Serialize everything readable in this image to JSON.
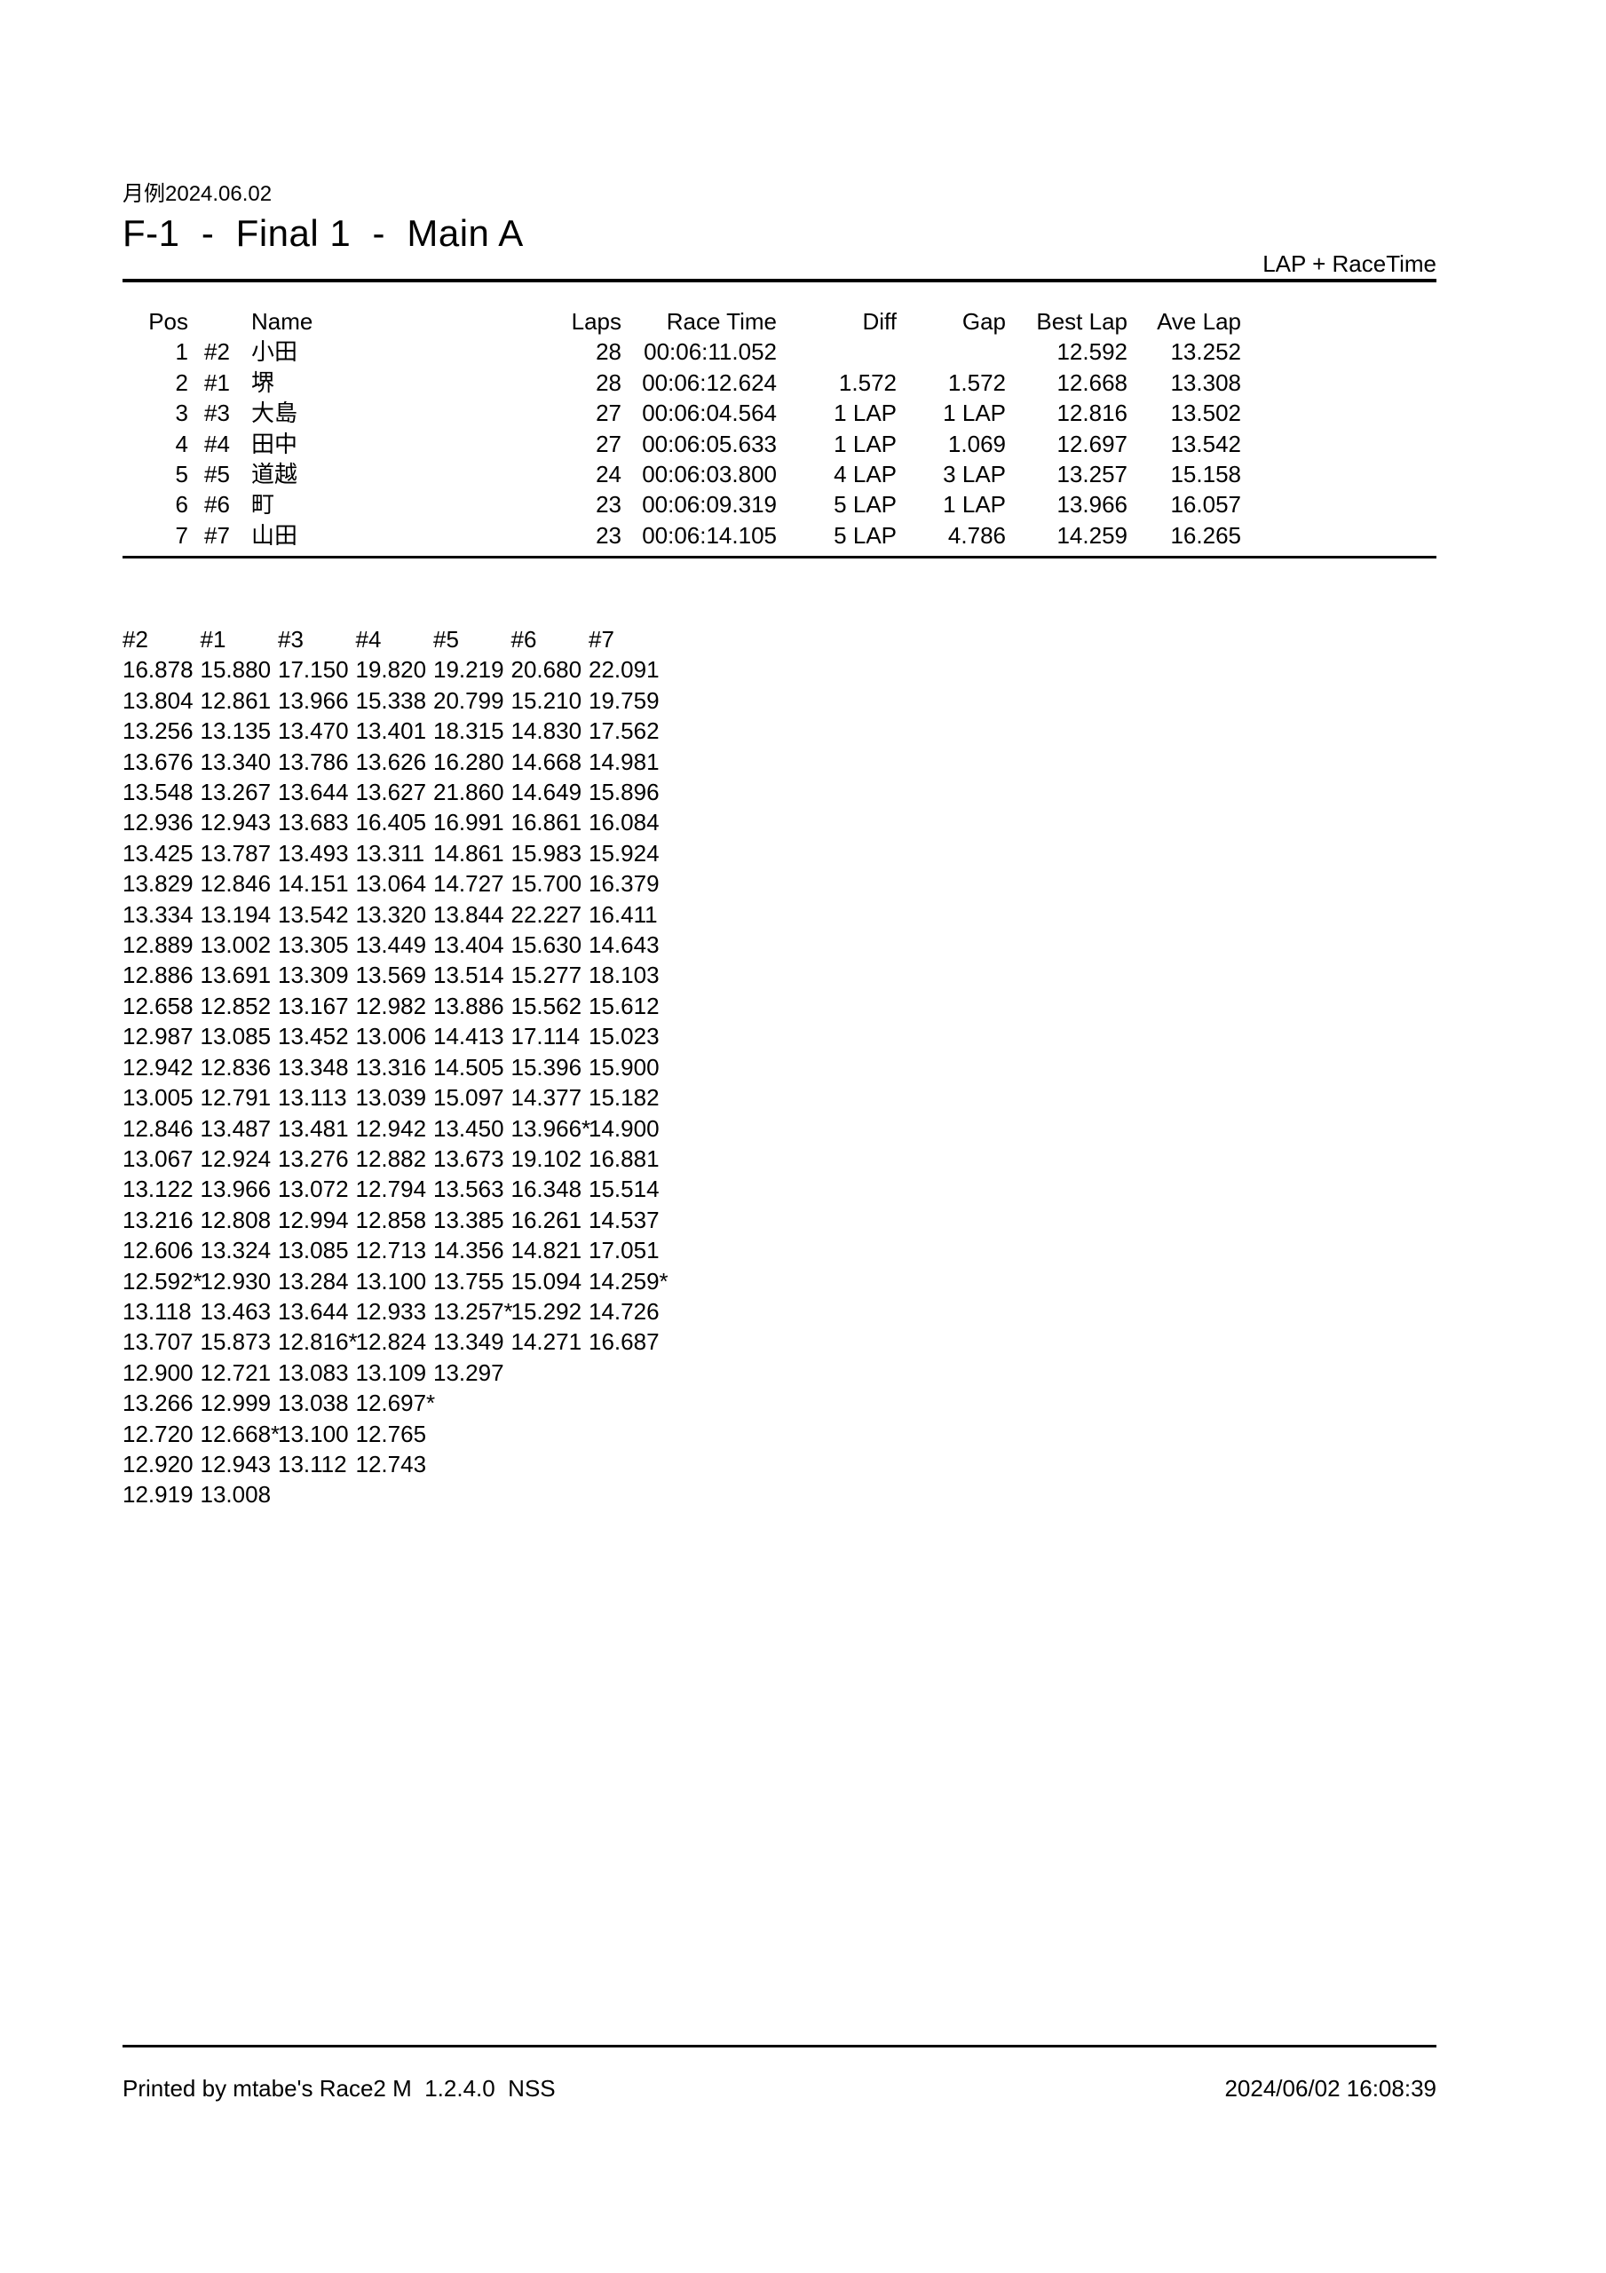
{
  "page": {
    "event_label": "月例2024.06.02",
    "title": "F-1  -  Final 1  -  Main A",
    "mode_label": "LAP + RaceTime"
  },
  "results": {
    "columns": [
      {
        "key": "pos",
        "label": "Pos"
      },
      {
        "key": "car",
        "label": ""
      },
      {
        "key": "name",
        "label": "Name"
      },
      {
        "key": "laps",
        "label": "Laps"
      },
      {
        "key": "race_time",
        "label": "Race Time"
      },
      {
        "key": "diff",
        "label": "Diff"
      },
      {
        "key": "gap",
        "label": "Gap"
      },
      {
        "key": "best_lap",
        "label": "Best Lap"
      },
      {
        "key": "ave_lap",
        "label": "Ave Lap"
      }
    ],
    "rows": [
      {
        "pos": "1",
        "car": "#2",
        "name": "小田",
        "laps": "28",
        "race_time": "00:06:11.052",
        "diff": "",
        "gap": "",
        "best_lap": "12.592",
        "ave_lap": "13.252"
      },
      {
        "pos": "2",
        "car": "#1",
        "name": "堺",
        "laps": "28",
        "race_time": "00:06:12.624",
        "diff": "1.572",
        "gap": "1.572",
        "best_lap": "12.668",
        "ave_lap": "13.308"
      },
      {
        "pos": "3",
        "car": "#3",
        "name": "大島",
        "laps": "27",
        "race_time": "00:06:04.564",
        "diff": "1 LAP",
        "gap": "1 LAP",
        "best_lap": "12.816",
        "ave_lap": "13.502"
      },
      {
        "pos": "4",
        "car": "#4",
        "name": "田中",
        "laps": "27",
        "race_time": "00:06:05.633",
        "diff": "1 LAP",
        "gap": "1.069",
        "best_lap": "12.697",
        "ave_lap": "13.542"
      },
      {
        "pos": "5",
        "car": "#5",
        "name": "道越",
        "laps": "24",
        "race_time": "00:06:03.800",
        "diff": "4 LAP",
        "gap": "3 LAP",
        "best_lap": "13.257",
        "ave_lap": "15.158"
      },
      {
        "pos": "6",
        "car": "#6",
        "name": "町",
        "laps": "23",
        "race_time": "00:06:09.319",
        "diff": "5 LAP",
        "gap": "1 LAP",
        "best_lap": "13.966",
        "ave_lap": "16.057"
      },
      {
        "pos": "7",
        "car": "#7",
        "name": "山田",
        "laps": "23",
        "race_time": "00:06:14.105",
        "diff": "5 LAP",
        "gap": "4.786",
        "best_lap": "14.259",
        "ave_lap": "16.265"
      }
    ]
  },
  "lap_chart": {
    "columns": [
      {
        "label": "#2",
        "laps": [
          "16.878",
          "13.804",
          "13.256",
          "13.676",
          "13.548",
          "12.936",
          "13.425",
          "13.829",
          "13.334",
          "12.889",
          "12.886",
          "12.658",
          "12.987",
          "12.942",
          "13.005",
          "12.846",
          "13.067",
          "13.122",
          "13.216",
          "12.606",
          "12.592*",
          "13.118",
          "13.707",
          "12.900",
          "13.266",
          "12.720",
          "12.920",
          "12.919"
        ]
      },
      {
        "label": "#1",
        "laps": [
          "15.880",
          "12.861",
          "13.135",
          "13.340",
          "13.267",
          "12.943",
          "13.787",
          "12.846",
          "13.194",
          "13.002",
          "13.691",
          "12.852",
          "13.085",
          "12.836",
          "12.791",
          "13.487",
          "12.924",
          "13.966",
          "12.808",
          "13.324",
          "12.930",
          "13.463",
          "15.873",
          "12.721",
          "12.999",
          "12.668*",
          "12.943",
          "13.008"
        ]
      },
      {
        "label": "#3",
        "laps": [
          "17.150",
          "13.966",
          "13.470",
          "13.786",
          "13.644",
          "13.683",
          "13.493",
          "14.151",
          "13.542",
          "13.305",
          "13.309",
          "13.167",
          "13.452",
          "13.348",
          "13.113",
          "13.481",
          "13.276",
          "13.072",
          "12.994",
          "13.085",
          "13.284",
          "13.644",
          "12.816*",
          "13.083",
          "13.038",
          "13.100",
          "13.112"
        ]
      },
      {
        "label": "#4",
        "laps": [
          "19.820",
          "15.338",
          "13.401",
          "13.626",
          "13.627",
          "16.405",
          "13.311",
          "13.064",
          "13.320",
          "13.449",
          "13.569",
          "12.982",
          "13.006",
          "13.316",
          "13.039",
          "12.942",
          "12.882",
          "12.794",
          "12.858",
          "12.713",
          "13.100",
          "12.933",
          "12.824",
          "13.109",
          "12.697*",
          "12.765",
          "12.743"
        ]
      },
      {
        "label": "#5",
        "laps": [
          "19.219",
          "20.799",
          "18.315",
          "16.280",
          "21.860",
          "16.991",
          "14.861",
          "14.727",
          "13.844",
          "13.404",
          "13.514",
          "13.886",
          "14.413",
          "14.505",
          "15.097",
          "13.450",
          "13.673",
          "13.563",
          "13.385",
          "14.356",
          "13.755",
          "13.257*",
          "13.349",
          "13.297"
        ]
      },
      {
        "label": "#6",
        "laps": [
          "20.680",
          "15.210",
          "14.830",
          "14.668",
          "14.649",
          "16.861",
          "15.983",
          "15.700",
          "22.227",
          "15.630",
          "15.277",
          "15.562",
          "17.114",
          "15.396",
          "14.377",
          "13.966*",
          "19.102",
          "16.348",
          "16.261",
          "14.821",
          "15.094",
          "15.292",
          "14.271"
        ]
      },
      {
        "label": "#7",
        "laps": [
          "22.091",
          "19.759",
          "17.562",
          "14.981",
          "15.896",
          "16.084",
          "15.924",
          "16.379",
          "16.411",
          "14.643",
          "18.103",
          "15.612",
          "15.023",
          "15.900",
          "15.182",
          "14.900",
          "16.881",
          "15.514",
          "14.537",
          "17.051",
          "14.259*",
          "14.726",
          "16.687"
        ]
      }
    ]
  },
  "footer": {
    "printed_by": "Printed by mtabe's Race2 M  1.2.4.0  NSS",
    "timestamp": "2024/06/02 16:08:39"
  }
}
